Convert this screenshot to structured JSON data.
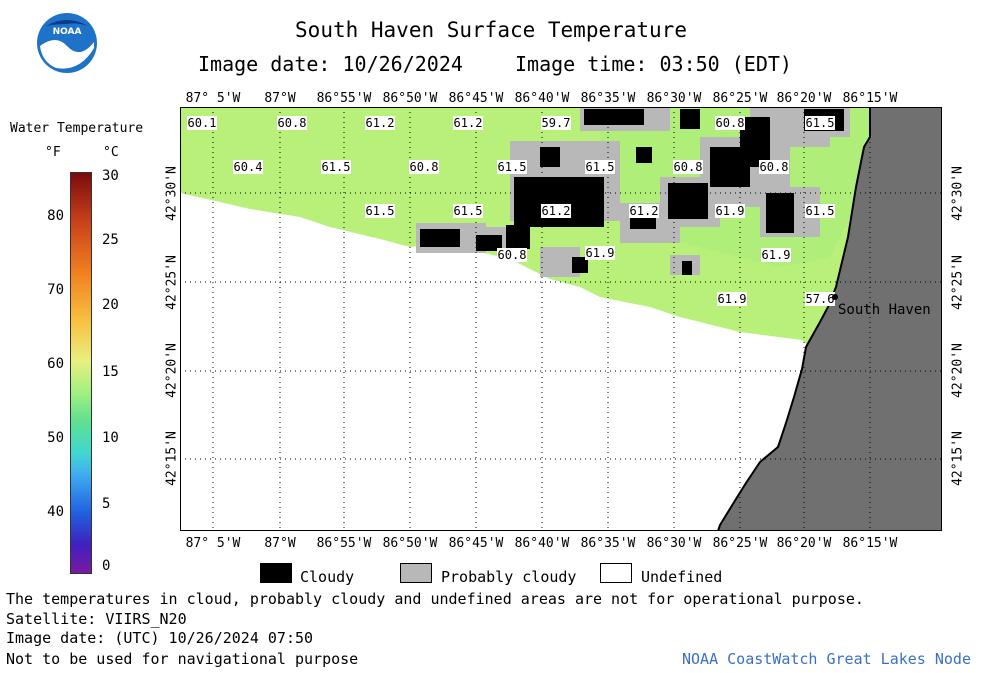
{
  "header": {
    "title": "South Haven Surface Temperature",
    "image_date": "Image date: 10/26/2024",
    "image_time": "Image time: 03:50 (EDT)"
  },
  "legend": {
    "title": "Water Temperature",
    "unit_f": "°F",
    "unit_c": "°C",
    "fahrenheit_ticks": [
      "80",
      "70",
      "60",
      "50",
      "40"
    ],
    "celsius_ticks": [
      "30",
      "25",
      "20",
      "15",
      "10",
      "5",
      "0"
    ]
  },
  "map": {
    "lon_labels": [
      "87° 5'W",
      "87°W",
      "86°55'W",
      "86°50'W",
      "86°45'W",
      "86°40'W",
      "86°35'W",
      "86°30'W",
      "86°25'W",
      "86°20'W",
      "86°15'W"
    ],
    "lat_labels": [
      "42°30'N",
      "42°25'N",
      "42°20'N",
      "42°15'N"
    ],
    "city_label": "South Haven",
    "colors": {
      "water": "#b8f07a",
      "land": "#707070",
      "cloud": "#000000",
      "probably_cloudy": "#b8b8b8"
    },
    "temperature_readings": [
      {
        "value": "60.1",
        "lon": "87° 5'W",
        "lat": "42°33'N"
      },
      {
        "value": "60.8",
        "lon": "87°W",
        "lat": "42°33'N"
      },
      {
        "value": "61.2",
        "lon": "86°55'W",
        "lat": "42°33'N"
      },
      {
        "value": "61.2",
        "lon": "86°47'W",
        "lat": "42°33'N"
      },
      {
        "value": "59.7",
        "lon": "86°40'W",
        "lat": "42°33'N"
      },
      {
        "value": "60.8",
        "lon": "86°23'W",
        "lat": "42°33'N"
      },
      {
        "value": "61.5",
        "lon": "86°18'W",
        "lat": "42°33'N"
      },
      {
        "value": "60.4",
        "lon": "87°03'W",
        "lat": "42°31'N"
      },
      {
        "value": "61.5",
        "lon": "86°58'W",
        "lat": "42°31'N"
      },
      {
        "value": "60.8",
        "lon": "86°52'W",
        "lat": "42°31'N"
      },
      {
        "value": "61.5",
        "lon": "86°44'W",
        "lat": "42°31'N"
      },
      {
        "value": "61.5",
        "lon": "86°37'W",
        "lat": "42°31'N"
      },
      {
        "value": "60.8",
        "lon": "86°30'W",
        "lat": "42°31'N"
      },
      {
        "value": "60.8",
        "lon": "86°22'W",
        "lat": "42°31'N"
      },
      {
        "value": "61.5",
        "lon": "86°55'W",
        "lat": "42°29'N"
      },
      {
        "value": "61.5",
        "lon": "86°47'W",
        "lat": "42°29'N"
      },
      {
        "value": "61.2",
        "lon": "86°39'W",
        "lat": "42°29'N"
      },
      {
        "value": "61.2",
        "lon": "86°33'W",
        "lat": "42°29'N"
      },
      {
        "value": "61.9",
        "lon": "86°25'W",
        "lat": "42°29'N"
      },
      {
        "value": "61.5",
        "lon": "86°19'W",
        "lat": "42°29'N"
      },
      {
        "value": "60.8",
        "lon": "86°42'W",
        "lat": "42°27'N"
      },
      {
        "value": "61.9",
        "lon": "86°37'W",
        "lat": "42°27'N"
      },
      {
        "value": "61.9",
        "lon": "86°22'W",
        "lat": "42°27'N"
      },
      {
        "value": "61.9",
        "lon": "86°25'W",
        "lat": "42°24'N"
      },
      {
        "value": "57.6",
        "lon": "86°19'W",
        "lat": "42°24'N"
      }
    ]
  },
  "key": {
    "cloudy": "Cloudy",
    "probably_cloudy": "Probably cloudy",
    "undefined": "Undefined"
  },
  "footer": {
    "disclaimer": "The temperatures in cloud, probably cloudy and undefined areas are not for operational purpose.",
    "satellite": "Satellite: VIIRS_N20",
    "utc_date": "Image date: (UTC) 10/26/2024  07:50",
    "nav_note": "Not to be used for navigational purpose",
    "credit": "NOAA CoastWatch Great Lakes Node"
  }
}
